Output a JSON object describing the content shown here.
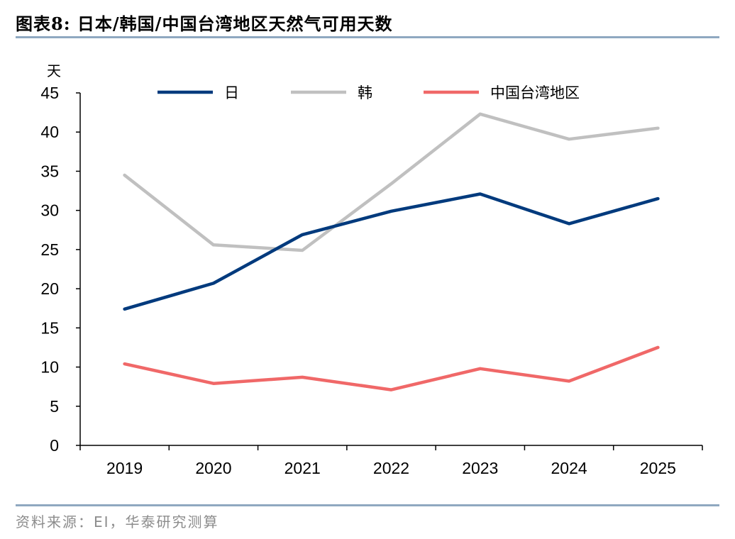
{
  "header": {
    "title": "图表8:   日本/韩国/中国台湾地区天然气可用天数"
  },
  "footer": {
    "source": "资料来源：EI，华泰研究测算"
  },
  "colors": {
    "japan": "#003a7d",
    "korea": "#c0c0c0",
    "taiwan": "#f06868",
    "rule": "#8fa8c0"
  },
  "chart_data": {
    "type": "line",
    "title": "日本/韩国/中国台湾地区天然气可用天数",
    "ylabel": "天",
    "xlabel": "",
    "ylim": [
      0,
      45
    ],
    "yticks": [
      0,
      5,
      10,
      15,
      20,
      25,
      30,
      35,
      40,
      45
    ],
    "categories": [
      "2019",
      "2020",
      "2021",
      "2022",
      "2023",
      "2024",
      "2025"
    ],
    "legend_position": "top",
    "grid": false,
    "series": [
      {
        "name": "日",
        "color": "#003a7d",
        "values": [
          17.4,
          20.7,
          26.9,
          29.9,
          32.1,
          28.3,
          31.5
        ]
      },
      {
        "name": "韩",
        "color": "#c0c0c0",
        "values": [
          34.5,
          25.6,
          24.9,
          33.4,
          42.3,
          39.1,
          40.5
        ]
      },
      {
        "name": "中国台湾地区",
        "color": "#f06868",
        "values": [
          10.4,
          7.9,
          8.7,
          7.1,
          9.8,
          8.2,
          12.5
        ]
      }
    ]
  }
}
